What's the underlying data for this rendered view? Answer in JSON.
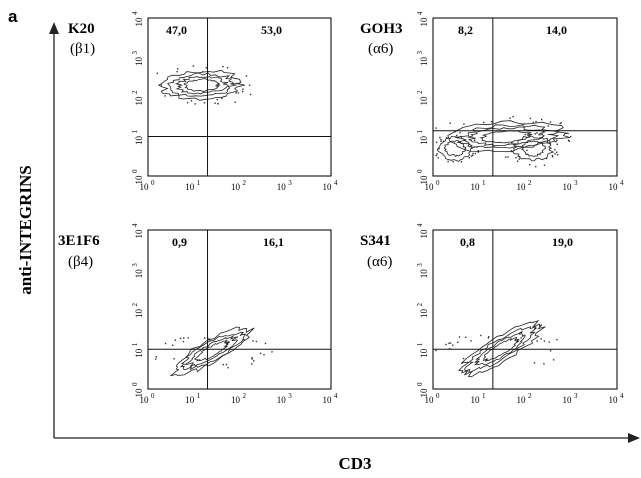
{
  "figure_label": "a",
  "chart_data": {
    "type": "scatter",
    "xlabel": "CD3",
    "ylabel": "anti-INTEGRINS",
    "x_scale": "log",
    "y_scale": "log",
    "xlim": [
      1,
      10000
    ],
    "ylim": [
      1,
      10000
    ],
    "tick_base": "10",
    "tick_exponents": [
      "0",
      "1",
      "2",
      "3",
      "4"
    ],
    "panels": [
      {
        "antibody": "K20",
        "integrin": "(β1)",
        "quadrants": {
          "upper_left": "47,0",
          "upper_right": "53,0"
        },
        "gate_x": 20,
        "gate_y": 10,
        "populations": [
          {
            "cx": 15,
            "cy": 200,
            "sx_decades": 0.85,
            "sy_decades": 0.35,
            "tilt": 0.05,
            "levels": 4
          }
        ]
      },
      {
        "antibody": "GOH3",
        "integrin": "(α6)",
        "quadrants": {
          "upper_left": "8,2",
          "upper_right": "14,0"
        },
        "gate_x": 20,
        "gate_y": 14,
        "populations": [
          {
            "cx": 40,
            "cy": 10,
            "sx_decades": 1.25,
            "sy_decades": 0.35,
            "tilt": 0.05,
            "levels": 4
          },
          {
            "cx": 3,
            "cy": 5,
            "sx_decades": 0.35,
            "sy_decades": 0.3,
            "tilt": 0,
            "levels": 2
          },
          {
            "cx": 150,
            "cy": 5,
            "sx_decades": 0.4,
            "sy_decades": 0.3,
            "tilt": 0,
            "levels": 2
          }
        ]
      },
      {
        "antibody": "3E1F6",
        "integrin": "(β4)",
        "quadrants": {
          "upper_left": "0,9",
          "upper_right": "16,1"
        },
        "gate_x": 20,
        "gate_y": 10,
        "populations": [
          {
            "cx": 25,
            "cy": 9,
            "sx_decades": 0.95,
            "sy_decades": 0.28,
            "tilt": 0.55,
            "levels": 4
          }
        ]
      },
      {
        "antibody": "S341",
        "integrin": "(α6)",
        "quadrants": {
          "upper_left": "0,8",
          "upper_right": "19,0"
        },
        "gate_x": 20,
        "gate_y": 10,
        "populations": [
          {
            "cx": 30,
            "cy": 10,
            "sx_decades": 1.0,
            "sy_decades": 0.3,
            "tilt": 0.6,
            "levels": 4
          }
        ]
      }
    ]
  }
}
